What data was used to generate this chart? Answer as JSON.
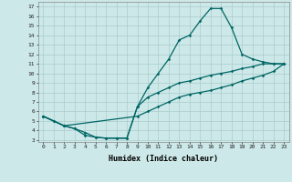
{
  "xlabel": "Humidex (Indice chaleur)",
  "bg_color": "#cde8e8",
  "grid_color": "#aacccc",
  "line_color": "#006666",
  "xlim": [
    -0.5,
    23.5
  ],
  "ylim": [
    2.8,
    17.5
  ],
  "xticks": [
    0,
    1,
    2,
    3,
    4,
    5,
    6,
    7,
    8,
    9,
    10,
    11,
    12,
    13,
    14,
    15,
    16,
    17,
    18,
    19,
    20,
    21,
    22,
    23
  ],
  "yticks": [
    3,
    4,
    5,
    6,
    7,
    8,
    9,
    10,
    11,
    12,
    13,
    14,
    15,
    16,
    17
  ],
  "line1_x": [
    0,
    1,
    2,
    3,
    4,
    5,
    6,
    7,
    8,
    9,
    10,
    11,
    12,
    13,
    14,
    15,
    16,
    17,
    18,
    19,
    20,
    21,
    22,
    23
  ],
  "line1_y": [
    5.5,
    5.0,
    4.5,
    4.2,
    3.5,
    3.3,
    3.2,
    3.2,
    3.2,
    6.5,
    8.5,
    10.0,
    11.5,
    13.5,
    14.0,
    15.5,
    16.8,
    16.8,
    14.8,
    12.0,
    11.5,
    11.2,
    11.0,
    11.0
  ],
  "line2_x": [
    0,
    2,
    9,
    10,
    11,
    12,
    13,
    14,
    15,
    16,
    17,
    18,
    19,
    20,
    21,
    22,
    23
  ],
  "line2_y": [
    5.5,
    4.5,
    5.5,
    6.0,
    6.5,
    7.0,
    7.5,
    7.8,
    8.0,
    8.2,
    8.5,
    8.8,
    9.2,
    9.5,
    9.8,
    10.2,
    11.0
  ],
  "line3_x": [
    0,
    1,
    2,
    3,
    4,
    5,
    6,
    7,
    8,
    9,
    10,
    11,
    12,
    13,
    14,
    15,
    16,
    17,
    18,
    19,
    20,
    21,
    22,
    23
  ],
  "line3_y": [
    5.5,
    5.0,
    4.5,
    4.2,
    3.8,
    3.3,
    3.2,
    3.2,
    3.2,
    6.5,
    7.5,
    8.0,
    8.5,
    9.0,
    9.2,
    9.5,
    9.8,
    10.0,
    10.2,
    10.5,
    10.7,
    11.0,
    11.0,
    11.0
  ]
}
